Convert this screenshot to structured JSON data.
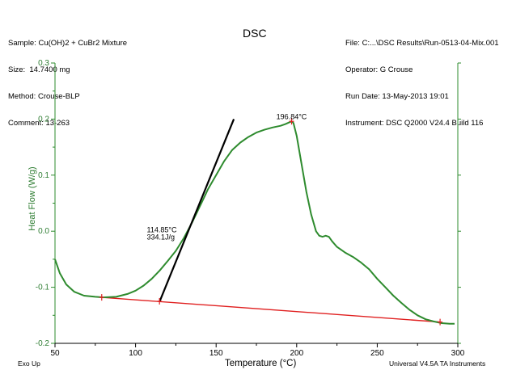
{
  "header": {
    "title": "DSC",
    "left_lines": [
      "Sample: Cu(OH)2 + CuBr2 Mixture",
      "Size:  14.7400 mg",
      "Method: Crouse-BLP",
      "Comment: 13-263"
    ],
    "right_lines": [
      "File: C:...\\DSC Results\\Run-0513-04-Mix.001",
      "Operator: G Crouse",
      "Run Date: 13-May-2013 19:01",
      "Instrument: DSC Q2000 V24.4 Build 116"
    ]
  },
  "footer": {
    "left": "Exo Up",
    "right": "Universal V4.5A TA Instruments"
  },
  "colors": {
    "curve": "#2e8b2e",
    "baseline": "#e02020",
    "tangent": "#000000",
    "axis": "#2e8b2e"
  },
  "chart_data": {
    "type": "line",
    "title": "DSC",
    "xlabel": "Temperature (°C)",
    "ylabel": "Heat Flow (W/g)",
    "xlim": [
      50,
      300
    ],
    "ylim": [
      -0.2,
      0.3
    ],
    "xticks": [
      50,
      100,
      150,
      200,
      250,
      300
    ],
    "yticks": [
      -0.2,
      -0.1,
      0.0,
      0.1,
      0.2,
      0.3
    ],
    "ytick_labels": [
      "-0.2",
      "-0.1",
      "0.0",
      "0.1",
      "0.2",
      "0.3"
    ],
    "series": [
      {
        "role": "heat-flow-curve",
        "x": [
          50,
          53,
          57,
          62,
          68,
          75,
          80,
          88,
          95,
          100,
          105,
          110,
          115,
          120,
          125,
          130,
          135,
          140,
          145,
          150,
          155,
          160,
          165,
          170,
          175,
          180,
          185,
          190,
          193,
          196.84,
          198,
          200,
          203,
          206,
          209,
          212,
          214,
          216,
          218,
          220,
          222,
          225,
          230,
          235,
          240,
          245,
          250,
          255,
          260,
          265,
          270,
          275,
          280,
          285,
          290,
          295,
          298
        ],
        "y": [
          -0.05,
          -0.075,
          -0.095,
          -0.108,
          -0.115,
          -0.117,
          -0.118,
          -0.117,
          -0.112,
          -0.106,
          -0.097,
          -0.085,
          -0.07,
          -0.053,
          -0.035,
          -0.012,
          0.015,
          0.045,
          0.075,
          0.1,
          0.125,
          0.145,
          0.158,
          0.168,
          0.176,
          0.181,
          0.185,
          0.188,
          0.191,
          0.196,
          0.193,
          0.17,
          0.12,
          0.07,
          0.03,
          0.0,
          -0.008,
          -0.01,
          -0.008,
          -0.01,
          -0.018,
          -0.028,
          -0.038,
          -0.046,
          -0.056,
          -0.068,
          -0.085,
          -0.1,
          -0.115,
          -0.128,
          -0.14,
          -0.15,
          -0.157,
          -0.161,
          -0.164,
          -0.165,
          -0.165
        ]
      }
    ],
    "baseline": {
      "x": [
        79,
        289
      ],
      "y": [
        -0.118,
        -0.162
      ]
    },
    "tangent": {
      "x": [
        115,
        161
      ],
      "y": [
        -0.125,
        0.2
      ]
    },
    "markers": [
      {
        "x": 79,
        "y": -0.118
      },
      {
        "x": 114.85,
        "y": -0.125
      },
      {
        "x": 196.84,
        "y": 0.196
      },
      {
        "x": 289,
        "y": -0.162
      }
    ],
    "annotations": [
      {
        "text": "196.84°C",
        "x": 196.84,
        "y": 0.2
      },
      {
        "text": "114.85°C",
        "x": 107,
        "y": -0.002
      },
      {
        "text": "334.1J/g",
        "x": 107,
        "y": -0.015
      }
    ]
  }
}
